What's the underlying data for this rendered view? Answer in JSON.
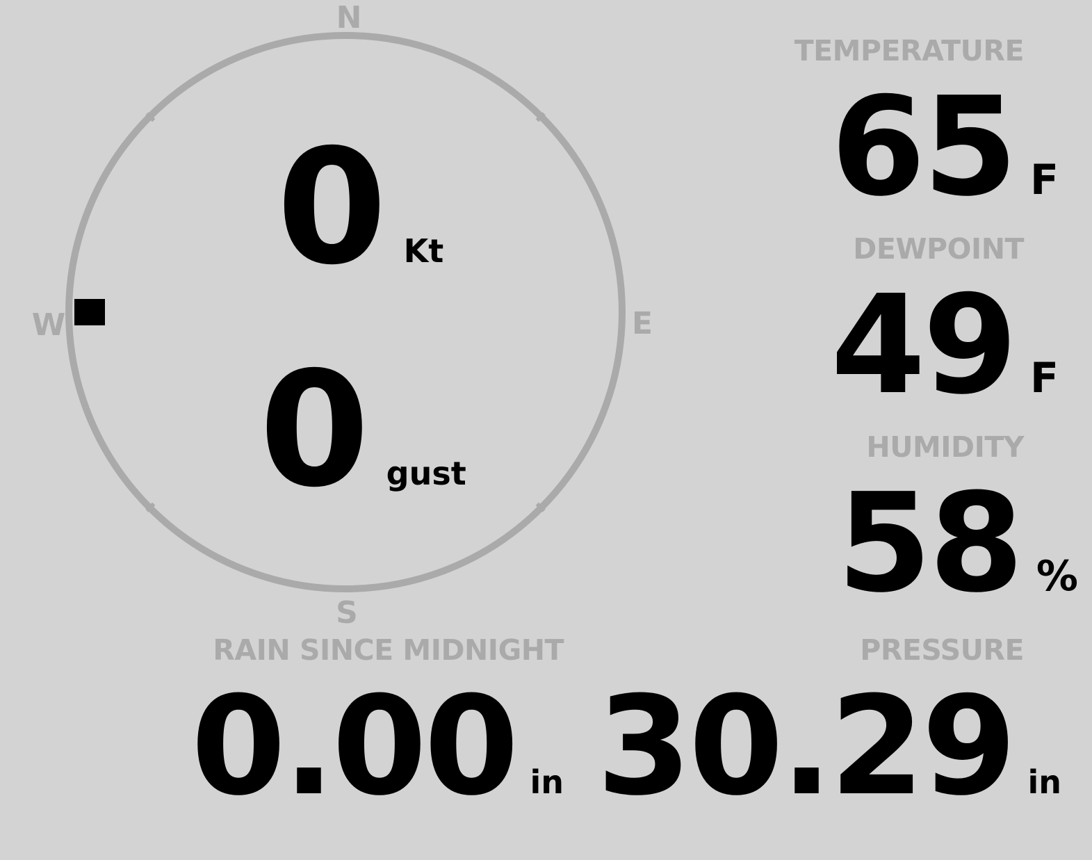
{
  "compass": {
    "cardinals": {
      "n": "N",
      "e": "E",
      "s": "S",
      "w": "W"
    },
    "wind_direction_deg": 270,
    "ring_color": "#aaaaaa",
    "marker_color": "#000000"
  },
  "wind": {
    "speed": "0",
    "speed_unit": "Kt",
    "gust": "0",
    "gust_unit": "gust"
  },
  "temperature": {
    "label": "TEMPERATURE",
    "value": "65",
    "unit": "F"
  },
  "dewpoint": {
    "label": "DEWPOINT",
    "value": "49",
    "unit": "F"
  },
  "humidity": {
    "label": "HUMIDITY",
    "value": "58",
    "unit": "%"
  },
  "rain": {
    "label": "RAIN SINCE MIDNIGHT",
    "value": "0.00",
    "unit": "in"
  },
  "pressure": {
    "label": "PRESSURE",
    "value": "30.29",
    "unit": "in"
  },
  "colors": {
    "background": "#d3d3d3",
    "label": "#aaaaaa",
    "value": "#000000"
  }
}
